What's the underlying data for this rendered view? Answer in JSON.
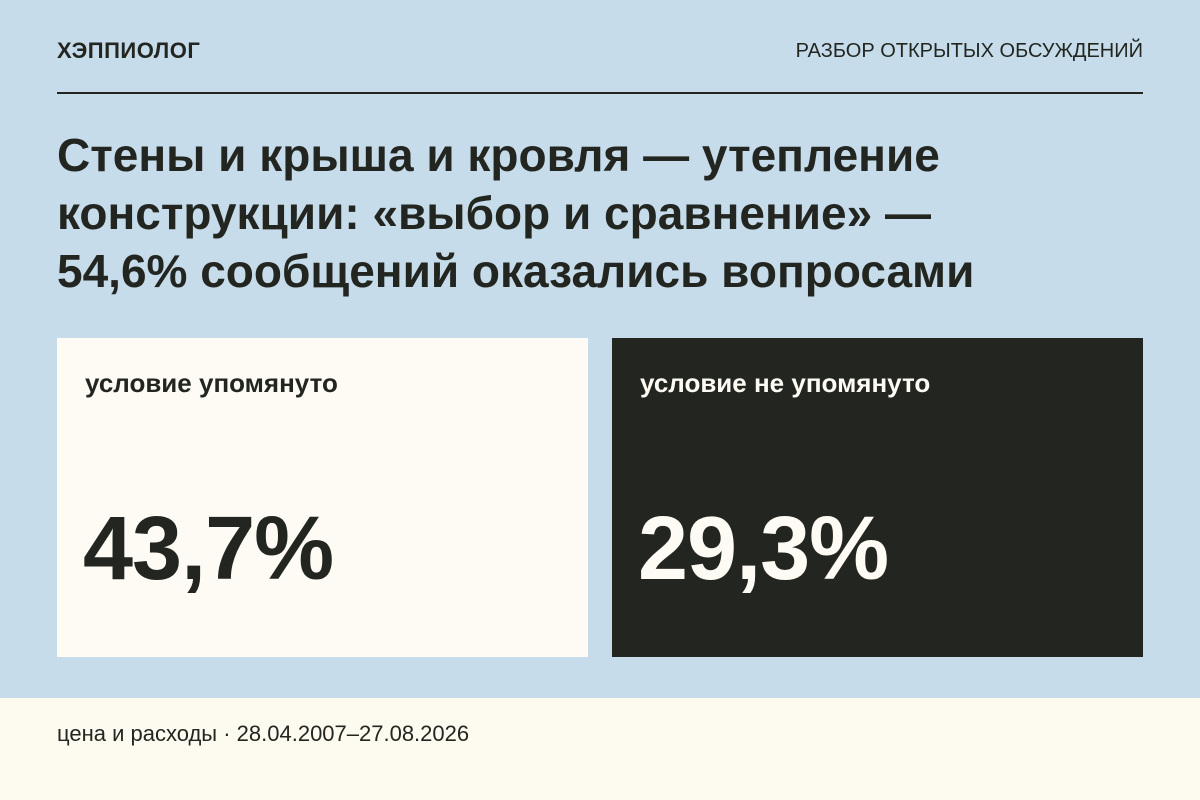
{
  "header": {
    "brand": "ХЭППИОЛОГ",
    "section": "РАЗБОР ОТКРЫТЫХ ОБСУЖДЕНИЙ"
  },
  "title": {
    "lines": [
      "Стены и крыша и кровля — утепление",
      "конструкции: «выбор и сравнение» —",
      "54,6% сообщений оказались вопросами"
    ]
  },
  "cards": [
    {
      "label": "условие упомянуто",
      "value": "43,7%"
    },
    {
      "label": "условие не упомянуто",
      "value": "29,3%"
    }
  ],
  "footer": {
    "text": "цена и расходы · 28.04.2007–27.08.2026"
  }
}
